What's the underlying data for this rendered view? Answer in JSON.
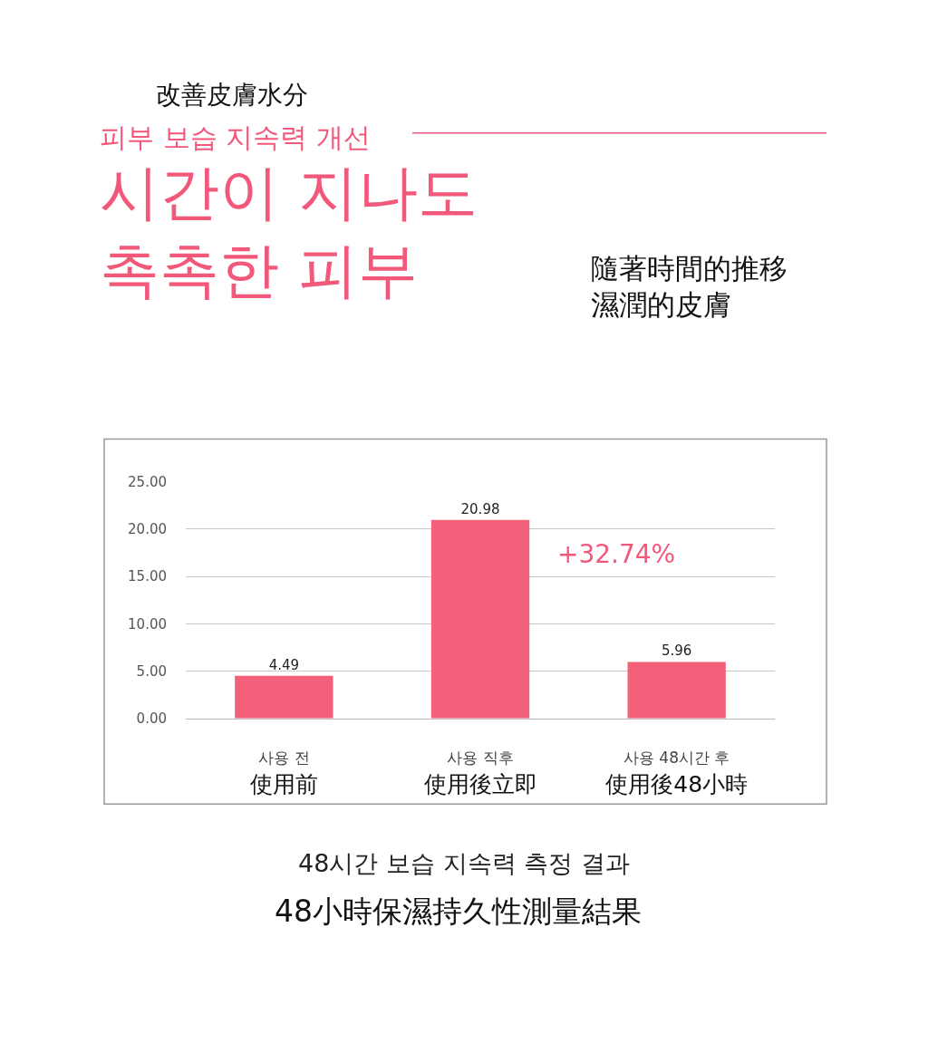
{
  "chart_data": {
    "type": "bar",
    "title": "시간이 지나도\n촉촉한 피부",
    "subtitle": "隨著時間的推移濕潤的皮膚",
    "categories": [
      "사용 전\n使用前",
      "사용 직후\n使用後立即",
      "사용 48시간 후\n使用後48小時"
    ],
    "values": [
      4.49,
      20.98,
      5.96
    ],
    "color": "#f2607a",
    "data_labels": true,
    "ylim": [
      0,
      25
    ],
    "yticks": [
      {
        "value": 0,
        "label": "0.00"
      },
      {
        "value": 5,
        "label": "5.00"
      },
      {
        "value": 10,
        "label": "10.00"
      },
      {
        "value": 15,
        "label": "15.00"
      },
      {
        "value": 20,
        "label": "20.00"
      },
      {
        "value": 25,
        "label": "25.00"
      }
    ],
    "grid": "y",
    "annotations": [
      "改善皮膚水分",
      "피부 보습 지속력 개선",
      "+32.74%",
      "48시간 보습 지속력 측정 결과",
      "48小時保濕持久性測量結果"
    ]
  }
}
